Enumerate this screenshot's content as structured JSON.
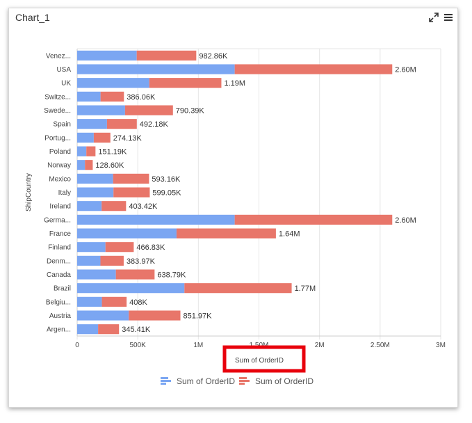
{
  "widget": {
    "title": "Chart_1",
    "expand_icon": "expand-icon",
    "menu_icon": "menu-icon"
  },
  "colors": {
    "series1": "#7ba6f2",
    "series2": "#e8766a",
    "grid": "#e6e6e6",
    "axis_text": "#444444",
    "highlight_box": "#e8000c"
  },
  "chart_data": {
    "type": "bar",
    "orientation": "horizontal",
    "stacked": true,
    "title": "",
    "xlabel": "Sum of OrderID",
    "ylabel": "ShipCountry",
    "xlim": [
      0,
      3000000
    ],
    "xticks": [
      {
        "value": 0,
        "label": "0"
      },
      {
        "value": 500000,
        "label": "500K"
      },
      {
        "value": 1000000,
        "label": "1M"
      },
      {
        "value": 1500000,
        "label": "1.50M"
      },
      {
        "value": 2000000,
        "label": "2M"
      },
      {
        "value": 2500000,
        "label": "2.50M"
      },
      {
        "value": 3000000,
        "label": "3M"
      }
    ],
    "grid": true,
    "legend_position": "bottom",
    "categories": [
      "Venez...",
      "USA",
      "UK",
      "Switze...",
      "Swede...",
      "Spain",
      "Portug...",
      "Poland",
      "Norway",
      "Mexico",
      "Italy",
      "Ireland",
      "Germa...",
      "France",
      "Finland",
      "Denm...",
      "Canada",
      "Brazil",
      "Belgiu...",
      "Austria",
      "Argen..."
    ],
    "series": [
      {
        "name": "Sum of OrderID",
        "values": [
          491430,
          1300000,
          595000,
          193030,
          395195,
          246090,
          137065,
          75595,
          64300,
          296580,
          299525,
          201710,
          1300000,
          820000,
          233415,
          191985,
          319395,
          885000,
          204000,
          425985,
          172705
        ]
      },
      {
        "name": "Sum of OrderID",
        "values": [
          491430,
          1300000,
          595000,
          193030,
          395195,
          246090,
          137065,
          75595,
          64300,
          296580,
          299525,
          201710,
          1300000,
          820000,
          233415,
          191985,
          319395,
          885000,
          204000,
          425985,
          172705
        ]
      }
    ],
    "data_labels": [
      "982.86K",
      "2.60M",
      "1.19M",
      "386.06K",
      "790.39K",
      "492.18K",
      "274.13K",
      "151.19K",
      "128.60K",
      "593.16K",
      "599.05K",
      "403.42K",
      "2.60M",
      "1.64M",
      "466.83K",
      "383.97K",
      "638.79K",
      "1.77M",
      "408K",
      "851.97K",
      "345.41K"
    ]
  }
}
